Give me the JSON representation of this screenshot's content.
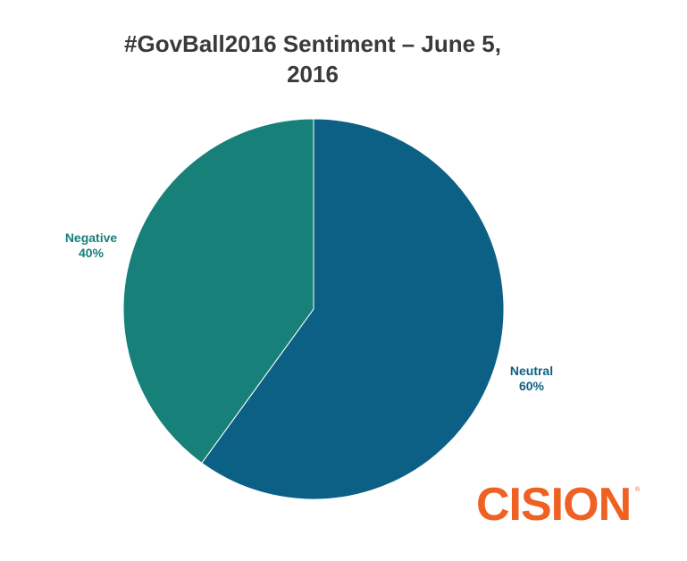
{
  "chart_data": {
    "type": "pie",
    "title_lines": [
      "#GovBall2016 Sentiment – June 5,",
      "2016"
    ],
    "slices": [
      {
        "name": "Neutral",
        "value": 60,
        "label": "60%",
        "color": "#0d6085"
      },
      {
        "name": "Negative",
        "value": 40,
        "label": "40%",
        "color": "#168079"
      }
    ],
    "start_angle_deg": 0,
    "direction": "clockwise"
  },
  "logo": {
    "text": "CISION",
    "mark": "®",
    "color": "#ef6023"
  }
}
